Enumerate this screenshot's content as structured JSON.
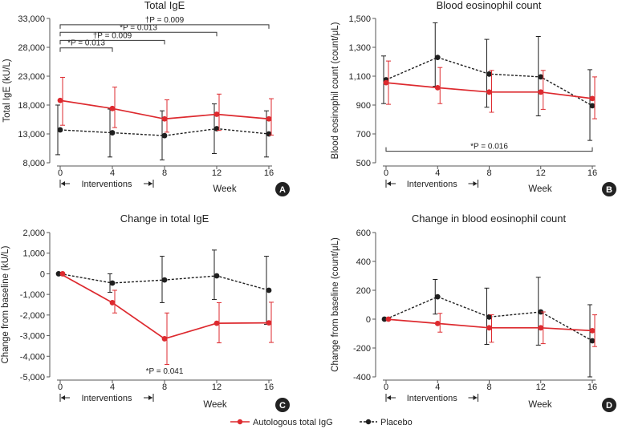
{
  "colors": {
    "treatment": "#dd2a2f",
    "placebo": "#1f1f1f",
    "axis": "#555555",
    "badge": "#222222"
  },
  "legend": {
    "treatment": "Autologous total IgG",
    "placebo": "Placebo"
  },
  "chart_data": [
    {
      "id": "A",
      "type": "line",
      "title": "Total IgE",
      "xlabel": "Week",
      "ylabel": "Total IgE (kU/L)",
      "x": [
        0,
        4,
        8,
        12,
        16
      ],
      "ylim": [
        8000,
        33000
      ],
      "yticks": [
        8000,
        13000,
        18000,
        23000,
        28000,
        33000
      ],
      "ytick_labels": [
        "8,000",
        "13,000",
        "18,000",
        "23,000",
        "28,000",
        "33,000"
      ],
      "xtick_labels": [
        "0",
        "4",
        "8",
        "12",
        "16"
      ],
      "interventions_label": "Interventions",
      "series": [
        {
          "name": "Autologous total IgG",
          "values": [
            18800,
            17400,
            15600,
            16400,
            15600
          ],
          "err_lo": [
            4300,
            3300,
            2300,
            2800,
            2800
          ],
          "err_hi": [
            4000,
            3700,
            3300,
            3500,
            3500
          ]
        },
        {
          "name": "Placebo",
          "values": [
            13700,
            13200,
            12700,
            13900,
            13000
          ],
          "err_lo": [
            4300,
            4200,
            4200,
            4300,
            4000
          ],
          "err_hi": [
            4300,
            4100,
            4300,
            4300,
            4000
          ]
        }
      ],
      "annotations": [
        {
          "from": 0,
          "to": 4,
          "label": "*P = 0.013",
          "level": 27900
        },
        {
          "from": 0,
          "to": 8,
          "label": "†P = 0.009",
          "level": 29200
        },
        {
          "from": 0,
          "to": 12,
          "label": "*P = 0.013",
          "level": 30600
        },
        {
          "from": 0,
          "to": 16,
          "label": "†P = 0.009",
          "level": 31900
        }
      ]
    },
    {
      "id": "B",
      "type": "line",
      "title": "Blood eosinophil count",
      "xlabel": "Week",
      "ylabel": "Blood eosinophil count (count/μL)",
      "x": [
        0,
        4,
        8,
        12,
        16
      ],
      "ylim": [
        500,
        1500
      ],
      "yticks": [
        500,
        700,
        900,
        1100,
        1300,
        1500
      ],
      "ytick_labels": [
        "500",
        "700",
        "900",
        "1,100",
        "1,300",
        "1,500"
      ],
      "xtick_labels": [
        "0",
        "4",
        "8",
        "12",
        "16"
      ],
      "interventions_label": "Interventions",
      "series": [
        {
          "name": "Autologous total IgG",
          "values": [
            1055,
            1020,
            990,
            990,
            945
          ],
          "err_lo": [
            150,
            110,
            140,
            120,
            140
          ],
          "err_hi": [
            150,
            140,
            150,
            150,
            150
          ]
        },
        {
          "name": "Placebo",
          "values": [
            1075,
            1230,
            1115,
            1095,
            895
          ],
          "err_lo": [
            165,
            200,
            230,
            270,
            240
          ],
          "err_hi": [
            165,
            240,
            240,
            280,
            250
          ]
        }
      ],
      "annotations": [
        {
          "from": 0,
          "to": 16,
          "label": "*P = 0.016",
          "level": 580
        }
      ]
    },
    {
      "id": "C",
      "type": "line",
      "title": "Change in total IgE",
      "xlabel": "Week",
      "ylabel": "Change from baseline (kU/L)",
      "x": [
        0,
        4,
        8,
        12,
        16
      ],
      "ylim": [
        -5000,
        2000
      ],
      "yticks": [
        -5000,
        -4000,
        -3000,
        -2000,
        -1000,
        0,
        1000,
        2000
      ],
      "ytick_labels": [
        "-5,000",
        "-4,000",
        "-3,000",
        "-2,000",
        "-1,000",
        "0",
        "1,000",
        "2,000"
      ],
      "xtick_labels": [
        "0",
        "4",
        "8",
        "12",
        "16"
      ],
      "interventions_label": "Interventions",
      "series": [
        {
          "name": "Autologous total IgG",
          "values": [
            0,
            -1400,
            -3150,
            -2400,
            -2380
          ],
          "err_lo": [
            0,
            500,
            1250,
            950,
            950
          ],
          "err_hi": [
            0,
            600,
            1250,
            1000,
            1000
          ]
        },
        {
          "name": "Placebo",
          "values": [
            0,
            -450,
            -300,
            -100,
            -800
          ],
          "err_lo": [
            0,
            450,
            1100,
            1150,
            1650
          ],
          "err_hi": [
            0,
            450,
            1150,
            1250,
            1650
          ]
        }
      ],
      "point_labels": [
        {
          "x": 8,
          "label": "*P = 0.041"
        }
      ]
    },
    {
      "id": "D",
      "type": "line",
      "title": "Change in blood eosinophil count",
      "xlabel": "Week",
      "ylabel": "Change from baseline (count/μL)",
      "x": [
        0,
        4,
        8,
        12,
        16
      ],
      "ylim": [
        -400,
        600
      ],
      "yticks": [
        -400,
        -200,
        0,
        200,
        400,
        600
      ],
      "ytick_labels": [
        "-400",
        "-200",
        "0",
        "200",
        "400",
        "600"
      ],
      "xtick_labels": [
        "0",
        "4",
        "8",
        "12",
        "16"
      ],
      "interventions_label": "Interventions",
      "series": [
        {
          "name": "Autologous total IgG",
          "values": [
            0,
            -30,
            -60,
            -60,
            -80
          ],
          "err_lo": [
            0,
            60,
            100,
            110,
            110
          ],
          "err_hi": [
            0,
            70,
            90,
            110,
            110
          ]
        },
        {
          "name": "Placebo",
          "values": [
            0,
            155,
            15,
            50,
            -150
          ],
          "err_lo": [
            0,
            120,
            190,
            230,
            250
          ],
          "err_hi": [
            0,
            120,
            200,
            240,
            250
          ]
        }
      ]
    }
  ]
}
